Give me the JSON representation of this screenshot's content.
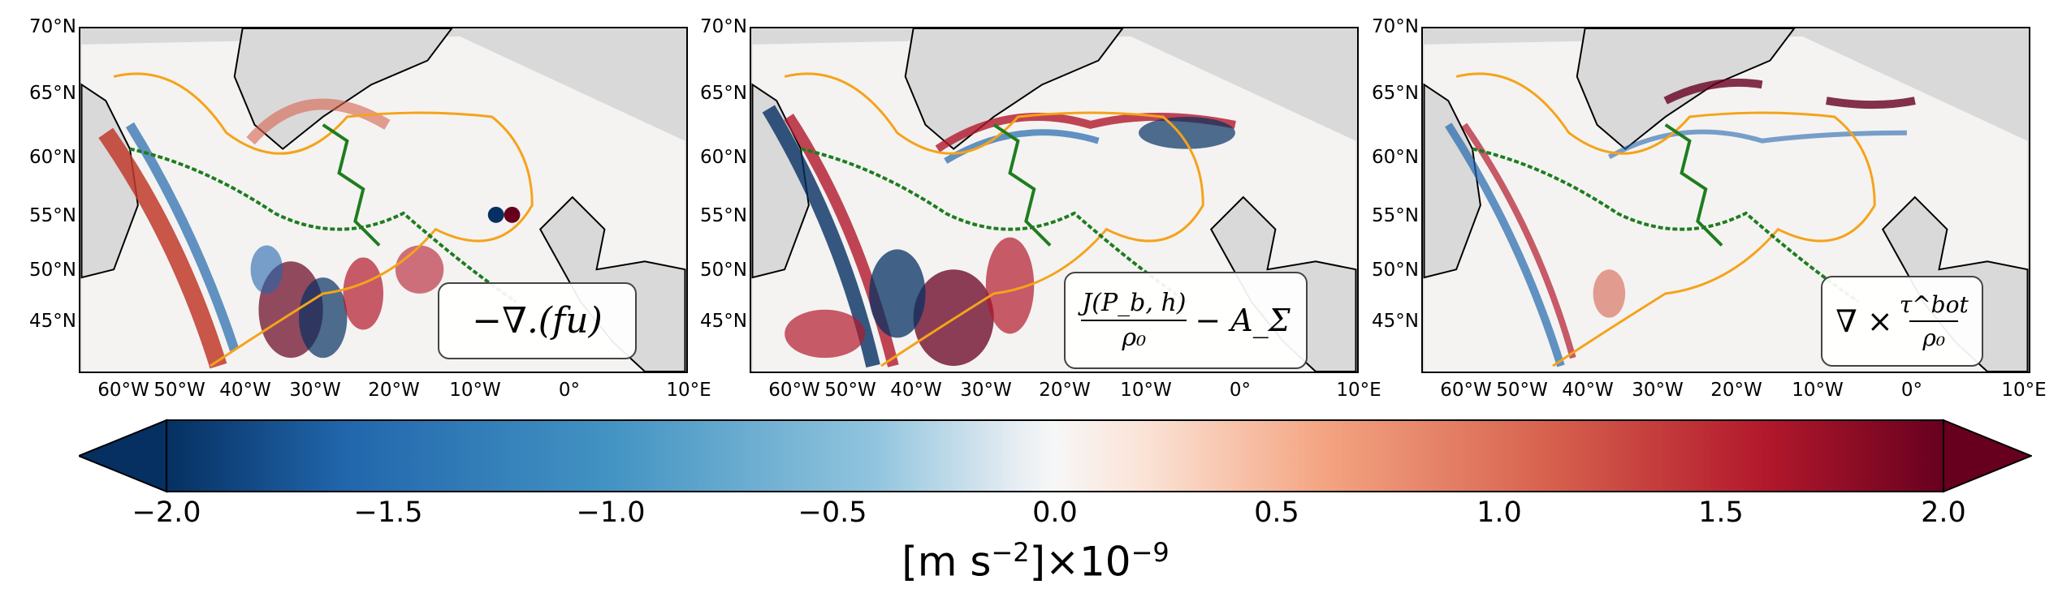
{
  "panels": [
    {
      "id": "panel1",
      "label": "−∇.(fu)"
    },
    {
      "id": "panel2",
      "label_num": "J(P_b, h)",
      "label_den": "ρ₀",
      "label_rest": "− A_Σ"
    },
    {
      "id": "panel3",
      "label_pre": "∇ ×",
      "label_num": "τ^bot",
      "label_den": "ρ₀"
    }
  ],
  "lat_ticks": [
    "70°N",
    "65°N",
    "60°N",
    "55°N",
    "50°N",
    "45°N"
  ],
  "lon_ticks": [
    "60°W",
    "50°W",
    "40°W",
    "30°W",
    "20°W",
    "10°W",
    "0°",
    "10°E"
  ],
  "colorbar": {
    "colormap": "RdBu_r",
    "ticks": [
      "−2.0",
      "−1.5",
      "−1.0",
      "−0.5",
      "0.0",
      "0.5",
      "1.0",
      "1.5",
      "2.0"
    ],
    "label_unit": "[m s",
    "label_exp": "−2",
    "label_scale": "]×10",
    "label_scale_exp": "−9",
    "range": [
      -2.0,
      2.0
    ]
  },
  "colors": {
    "land": "#d9d9d9",
    "contour_orange": "#f5a31a",
    "contour_green": "#1e7d1e"
  }
}
